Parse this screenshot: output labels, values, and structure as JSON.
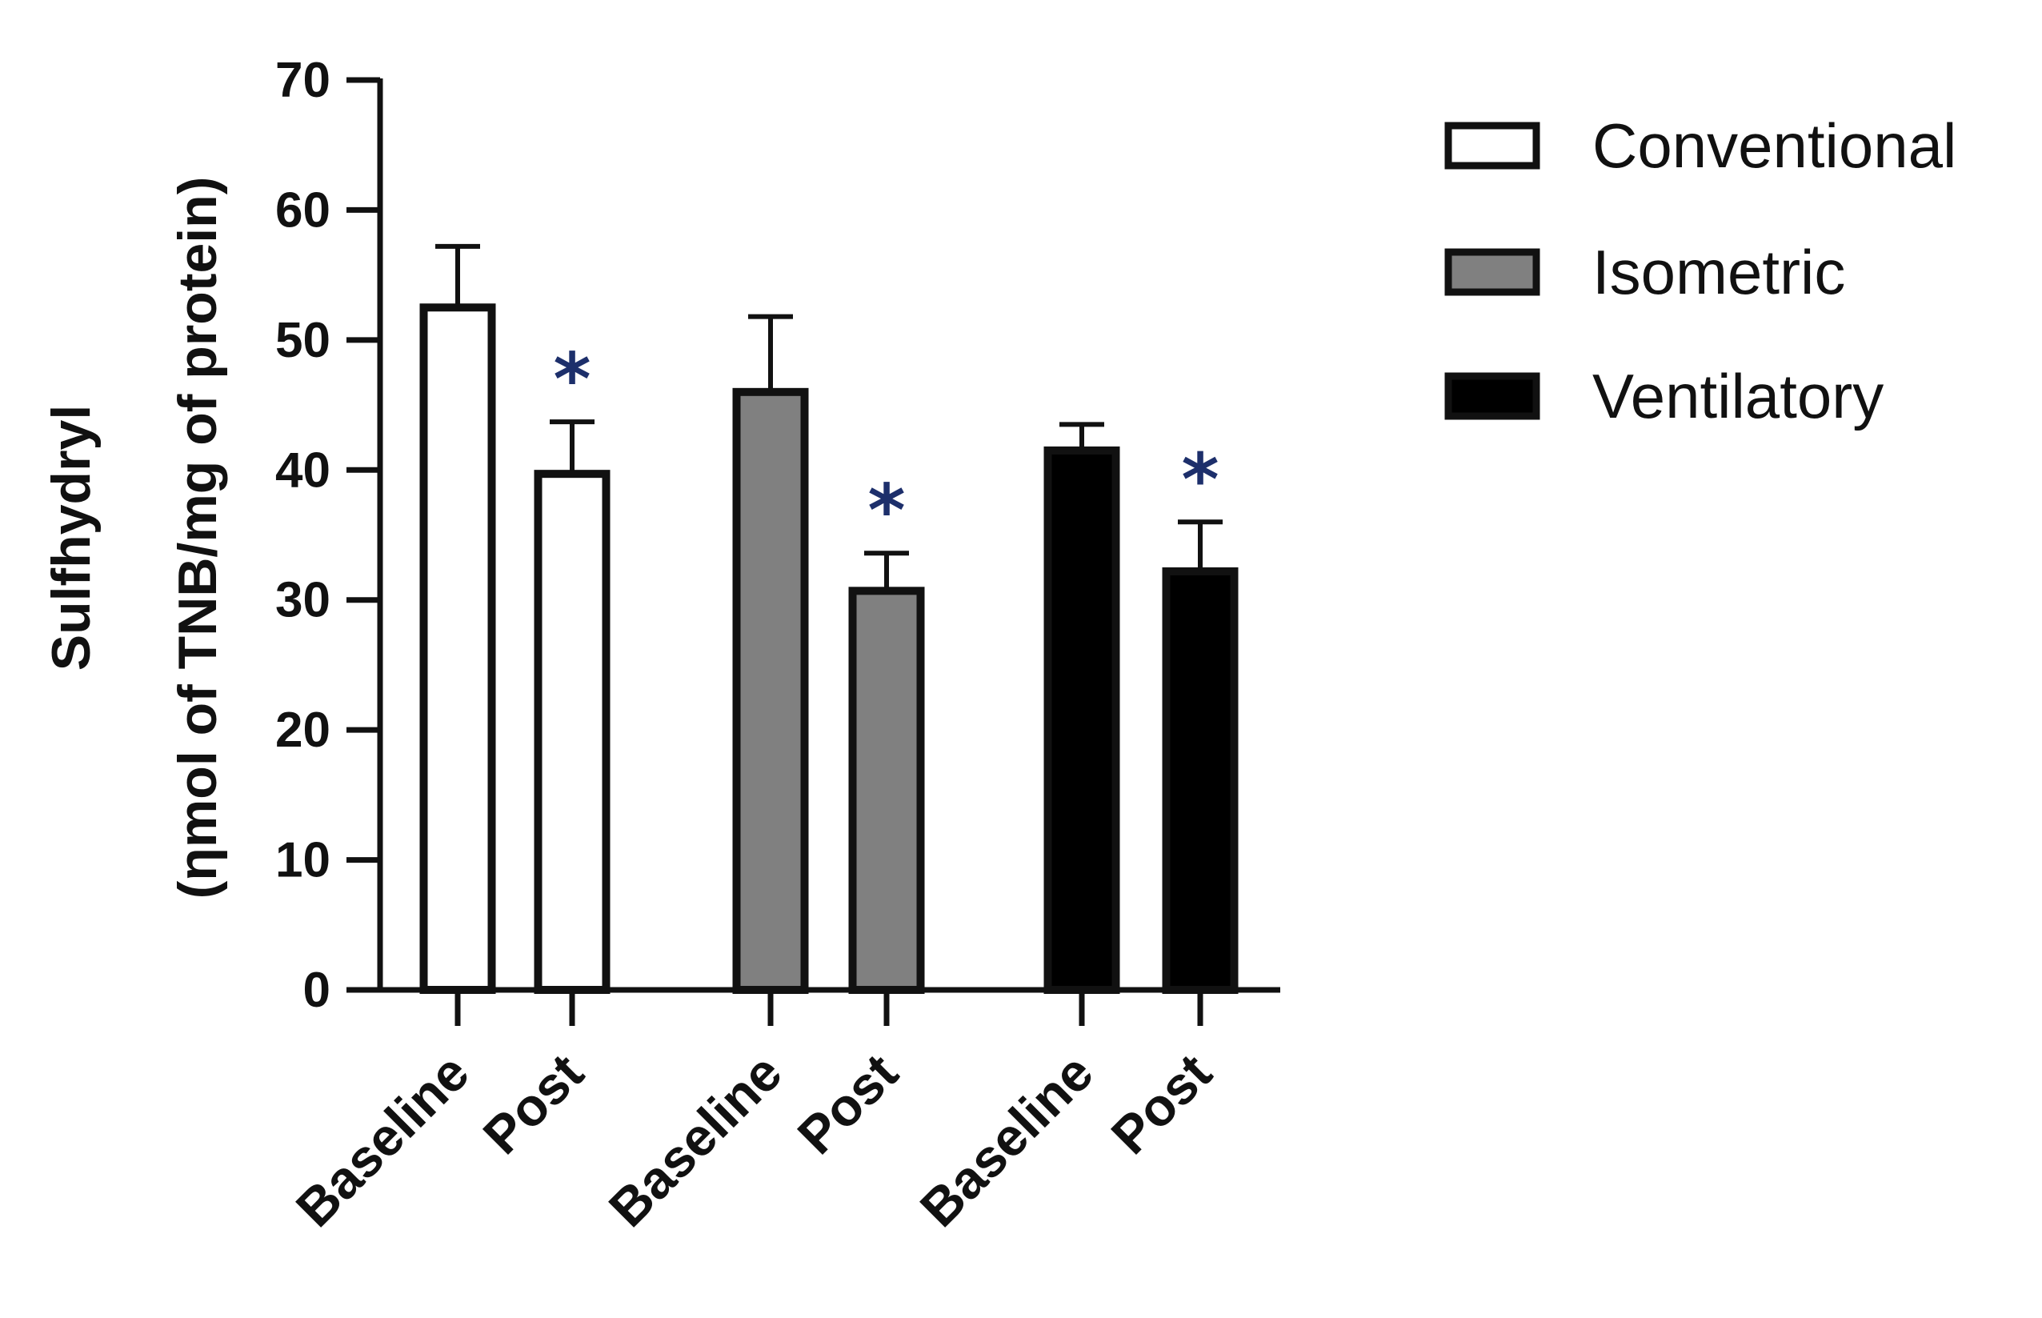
{
  "chart_data": {
    "type": "bar",
    "title": "",
    "xlabel": "",
    "ylabel_line1": "Sulfhydryl",
    "ylabel_line2": "(ηmol of TNB/mg of protein)",
    "ylim": [
      0,
      70
    ],
    "yticks": [
      0,
      10,
      20,
      30,
      40,
      50,
      60,
      70
    ],
    "legend_position": "top-right",
    "groups": [
      {
        "name": "Conventional",
        "color": "#ffffff",
        "bars": [
          {
            "label": "Baseline",
            "value": 52.5,
            "error": 4.7,
            "significant": false
          },
          {
            "label": "Post",
            "value": 39.7,
            "error": 4.0,
            "significant": true
          }
        ]
      },
      {
        "name": "Isometric",
        "color": "#808080",
        "bars": [
          {
            "label": "Baseline",
            "value": 46.0,
            "error": 5.8,
            "significant": false
          },
          {
            "label": "Post",
            "value": 30.7,
            "error": 2.9,
            "significant": true
          }
        ]
      },
      {
        "name": "Ventilatory",
        "color": "#000000",
        "bars": [
          {
            "label": "Baseline",
            "value": 41.5,
            "error": 2.0,
            "significant": false
          },
          {
            "label": "Post",
            "value": 32.2,
            "error": 3.8,
            "significant": true
          }
        ]
      }
    ],
    "significance_marker": "*"
  }
}
